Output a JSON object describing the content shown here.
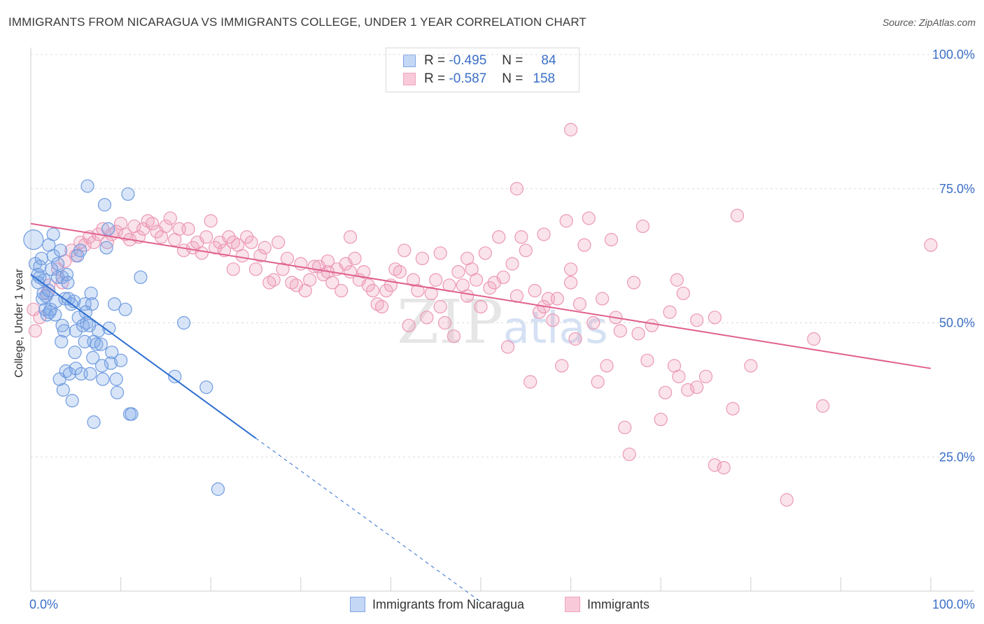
{
  "chart_data": {
    "type": "scatter",
    "title": "IMMIGRANTS FROM NICARAGUA VS IMMIGRANTS COLLEGE, UNDER 1 YEAR CORRELATION CHART",
    "source": "Source: ZipAtlas.com",
    "xlabel": "",
    "ylabel": "College, Under 1 year",
    "xlim": [
      0,
      100
    ],
    "ylim": [
      0,
      100
    ],
    "x_tick_labels": [
      {
        "value": 0,
        "label": "0.0%"
      },
      {
        "value": 100,
        "label": "100.0%"
      }
    ],
    "y_tick_labels": [
      {
        "value": 100,
        "label": "100.0%"
      },
      {
        "value": 75,
        "label": "75.0%"
      },
      {
        "value": 50,
        "label": "50.0%"
      },
      {
        "value": 25,
        "label": "25.0%"
      }
    ],
    "watermark": "ZIPatlas",
    "legend_stats": [
      {
        "r_label": "R =",
        "r_value": "-0.495",
        "n_label": "N =",
        "n_value": "84"
      },
      {
        "r_label": "R =",
        "r_value": "-0.587",
        "n_label": "N =",
        "n_value": "158"
      }
    ],
    "series": [
      {
        "name": "Immigrants from Nicaragua",
        "color": "#7fa8e8",
        "line_color": "#2f6fd0",
        "trend": {
          "x0": 0,
          "y0": 59,
          "x1": 25,
          "y1": 28.5,
          "x_dash_end": 50
        },
        "points": [
          [
            0.3,
            65.5
          ],
          [
            0.5,
            61
          ],
          [
            0.8,
            59
          ],
          [
            0.8,
            57.5
          ],
          [
            1.0,
            60.5
          ],
          [
            1.2,
            62
          ],
          [
            1.3,
            54.5
          ],
          [
            1.5,
            58
          ],
          [
            1.6,
            52.5
          ],
          [
            1.7,
            55
          ],
          [
            1.8,
            51.5
          ],
          [
            2.0,
            64.5
          ],
          [
            2.0,
            56
          ],
          [
            2.1,
            52
          ],
          [
            2.3,
            60
          ],
          [
            2.5,
            66.5
          ],
          [
            2.5,
            62.5
          ],
          [
            2.8,
            54
          ],
          [
            3.0,
            61
          ],
          [
            3.0,
            58.5
          ],
          [
            3.2,
            39.5
          ],
          [
            3.3,
            63.5
          ],
          [
            3.5,
            49.5
          ],
          [
            3.5,
            58.5
          ],
          [
            3.7,
            48.5
          ],
          [
            3.8,
            54.5
          ],
          [
            3.9,
            41
          ],
          [
            4.0,
            59
          ],
          [
            4.2,
            54.5
          ],
          [
            4.3,
            40.5
          ],
          [
            4.5,
            53.5
          ],
          [
            4.8,
            54
          ],
          [
            4.9,
            44.5
          ],
          [
            5.0,
            41.5
          ],
          [
            5.0,
            48.5
          ],
          [
            5.3,
            51
          ],
          [
            5.5,
            63.5
          ],
          [
            5.6,
            40.5
          ],
          [
            5.8,
            49.5
          ],
          [
            6.0,
            46.5
          ],
          [
            6.0,
            53.5
          ],
          [
            6.2,
            50
          ],
          [
            6.3,
            75.5
          ],
          [
            6.5,
            49.5
          ],
          [
            6.6,
            40.5
          ],
          [
            6.7,
            55.5
          ],
          [
            6.8,
            53.5
          ],
          [
            7.0,
            46.5
          ],
          [
            7.0,
            31.5
          ],
          [
            7.3,
            46
          ],
          [
            7.5,
            48.5
          ],
          [
            7.8,
            46
          ],
          [
            8.0,
            39.5
          ],
          [
            8.2,
            72
          ],
          [
            8.4,
            64
          ],
          [
            8.6,
            67.5
          ],
          [
            8.7,
            49
          ],
          [
            8.9,
            42.5
          ],
          [
            9.0,
            44.5
          ],
          [
            9.3,
            53.5
          ],
          [
            9.5,
            39.5
          ],
          [
            9.6,
            37
          ],
          [
            10.0,
            43
          ],
          [
            10.5,
            52.5
          ],
          [
            10.8,
            74
          ],
          [
            11.0,
            33
          ],
          [
            11.2,
            33
          ],
          [
            12.2,
            58.5
          ],
          [
            17.0,
            50
          ],
          [
            16.0,
            40
          ],
          [
            19.5,
            38
          ],
          [
            20.8,
            19
          ],
          [
            1.0,
            58.5
          ],
          [
            2.2,
            52.5
          ],
          [
            3.4,
            46.5
          ],
          [
            4.1,
            57.5
          ],
          [
            5.2,
            62.5
          ],
          [
            2.7,
            51.5
          ],
          [
            1.4,
            55.5
          ],
          [
            6.9,
            43.5
          ],
          [
            3.6,
            37.5
          ],
          [
            7.9,
            42
          ],
          [
            4.6,
            35.5
          ],
          [
            6.1,
            52
          ]
        ]
      },
      {
        "name": "Immigrants",
        "color": "#f0a3bd",
        "line_color": "#e0608e",
        "trend": {
          "x0": 0,
          "y0": 68.5,
          "x1": 100,
          "y1": 41.5
        },
        "points": [
          [
            0.3,
            52.5
          ],
          [
            0.5,
            48.5
          ],
          [
            1.0,
            51
          ],
          [
            1.8,
            55.5
          ],
          [
            2.0,
            57
          ],
          [
            3.0,
            60
          ],
          [
            3.5,
            57.5
          ],
          [
            3.8,
            61.5
          ],
          [
            4.5,
            63.5
          ],
          [
            5.0,
            62.5
          ],
          [
            5.5,
            65
          ],
          [
            6.0,
            64.5
          ],
          [
            6.5,
            66
          ],
          [
            7.0,
            65
          ],
          [
            7.5,
            66.5
          ],
          [
            8.0,
            67.5
          ],
          [
            8.5,
            65
          ],
          [
            9.0,
            66.5
          ],
          [
            9.5,
            67
          ],
          [
            10.0,
            68.5
          ],
          [
            10.5,
            66.5
          ],
          [
            11.0,
            65.5
          ],
          [
            11.5,
            68
          ],
          [
            12.0,
            66
          ],
          [
            12.5,
            67.5
          ],
          [
            13.0,
            69
          ],
          [
            13.5,
            68.5
          ],
          [
            14.0,
            67
          ],
          [
            14.5,
            66
          ],
          [
            15.0,
            68
          ],
          [
            15.5,
            69.5
          ],
          [
            16.0,
            65.5
          ],
          [
            16.5,
            67.5
          ],
          [
            17.0,
            63.5
          ],
          [
            17.5,
            67.5
          ],
          [
            18.0,
            64
          ],
          [
            18.5,
            65
          ],
          [
            19.0,
            63
          ],
          [
            19.5,
            66
          ],
          [
            20.0,
            69
          ],
          [
            20.5,
            64
          ],
          [
            21.0,
            65
          ],
          [
            21.5,
            63.5
          ],
          [
            22.0,
            66
          ],
          [
            22.5,
            65
          ],
          [
            23.0,
            64.5
          ],
          [
            23.5,
            62.5
          ],
          [
            24.0,
            66
          ],
          [
            24.5,
            65
          ],
          [
            25.0,
            60
          ],
          [
            25.5,
            62.5
          ],
          [
            26.0,
            64
          ],
          [
            26.5,
            57.5
          ],
          [
            27.0,
            58
          ],
          [
            27.5,
            65
          ],
          [
            28.0,
            60
          ],
          [
            28.5,
            62
          ],
          [
            29.0,
            57.5
          ],
          [
            29.5,
            57
          ],
          [
            30.0,
            61
          ],
          [
            30.5,
            56
          ],
          [
            31.0,
            58
          ],
          [
            31.5,
            60.5
          ],
          [
            32.0,
            60.5
          ],
          [
            32.5,
            59
          ],
          [
            33.0,
            61.5
          ],
          [
            33.5,
            57.5
          ],
          [
            34.0,
            60
          ],
          [
            34.5,
            56
          ],
          [
            35.0,
            61
          ],
          [
            35.5,
            59.5
          ],
          [
            36.0,
            62
          ],
          [
            36.5,
            58
          ],
          [
            37.0,
            59.5
          ],
          [
            37.5,
            57
          ],
          [
            38.0,
            56
          ],
          [
            38.5,
            53.5
          ],
          [
            39.0,
            53
          ],
          [
            39.5,
            56
          ],
          [
            40.0,
            57
          ],
          [
            40.5,
            60
          ],
          [
            41.0,
            59.5
          ],
          [
            41.5,
            63.5
          ],
          [
            42.0,
            49.5
          ],
          [
            42.5,
            58
          ],
          [
            43.0,
            56
          ],
          [
            43.5,
            62
          ],
          [
            44.0,
            51
          ],
          [
            44.5,
            55.5
          ],
          [
            45.0,
            58
          ],
          [
            45.5,
            53
          ],
          [
            46.0,
            50
          ],
          [
            46.5,
            57
          ],
          [
            47.0,
            47.5
          ],
          [
            47.5,
            59.5
          ],
          [
            48.0,
            57
          ],
          [
            48.5,
            55
          ],
          [
            49.0,
            60
          ],
          [
            49.5,
            58
          ],
          [
            50.0,
            53
          ],
          [
            50.5,
            63
          ],
          [
            51.0,
            56.5
          ],
          [
            51.5,
            57.5
          ],
          [
            52.0,
            66
          ],
          [
            52.5,
            58.5
          ],
          [
            53.0,
            45.5
          ],
          [
            53.5,
            61
          ],
          [
            54.0,
            55
          ],
          [
            54.5,
            66
          ],
          [
            55.0,
            63.5
          ],
          [
            55.5,
            39
          ],
          [
            56.0,
            56
          ],
          [
            56.5,
            52
          ],
          [
            57.0,
            66.5
          ],
          [
            57.5,
            54.5
          ],
          [
            58.0,
            50.5
          ],
          [
            58.5,
            54.5
          ],
          [
            59.0,
            42
          ],
          [
            59.5,
            69
          ],
          [
            60.0,
            57.5
          ],
          [
            60.5,
            47
          ],
          [
            61.0,
            53.5
          ],
          [
            61.5,
            64.5
          ],
          [
            62.0,
            69.5
          ],
          [
            62.5,
            50
          ],
          [
            63.0,
            39
          ],
          [
            63.5,
            54.5
          ],
          [
            64.0,
            42
          ],
          [
            64.5,
            65.5
          ],
          [
            65.0,
            51
          ],
          [
            66.0,
            30.5
          ],
          [
            66.5,
            25.5
          ],
          [
            67.0,
            57.5
          ],
          [
            67.5,
            48
          ],
          [
            68.0,
            68
          ],
          [
            68.5,
            43
          ],
          [
            69.0,
            49.5
          ],
          [
            70.0,
            32
          ],
          [
            70.5,
            37
          ],
          [
            71.0,
            52
          ],
          [
            71.5,
            42
          ],
          [
            72.0,
            40
          ],
          [
            72.5,
            55.5
          ],
          [
            73.0,
            37.5
          ],
          [
            74.0,
            38
          ],
          [
            75.0,
            40
          ],
          [
            76.0,
            23.5
          ],
          [
            77.0,
            23
          ],
          [
            78.0,
            34
          ],
          [
            78.5,
            70
          ],
          [
            80.0,
            42
          ],
          [
            84.0,
            17
          ],
          [
            87.0,
            47
          ],
          [
            88.0,
            34.5
          ],
          [
            100.0,
            64.5
          ],
          [
            60.0,
            60
          ],
          [
            45.5,
            63
          ],
          [
            74.0,
            50.5
          ],
          [
            57.0,
            53
          ],
          [
            33.0,
            59.5
          ],
          [
            22.5,
            60
          ],
          [
            35.5,
            66
          ],
          [
            48.5,
            62
          ],
          [
            65.5,
            48.5
          ],
          [
            76.0,
            51
          ],
          [
            71.8,
            58
          ],
          [
            60.0,
            86
          ],
          [
            54.0,
            75
          ]
        ]
      }
    ]
  }
}
